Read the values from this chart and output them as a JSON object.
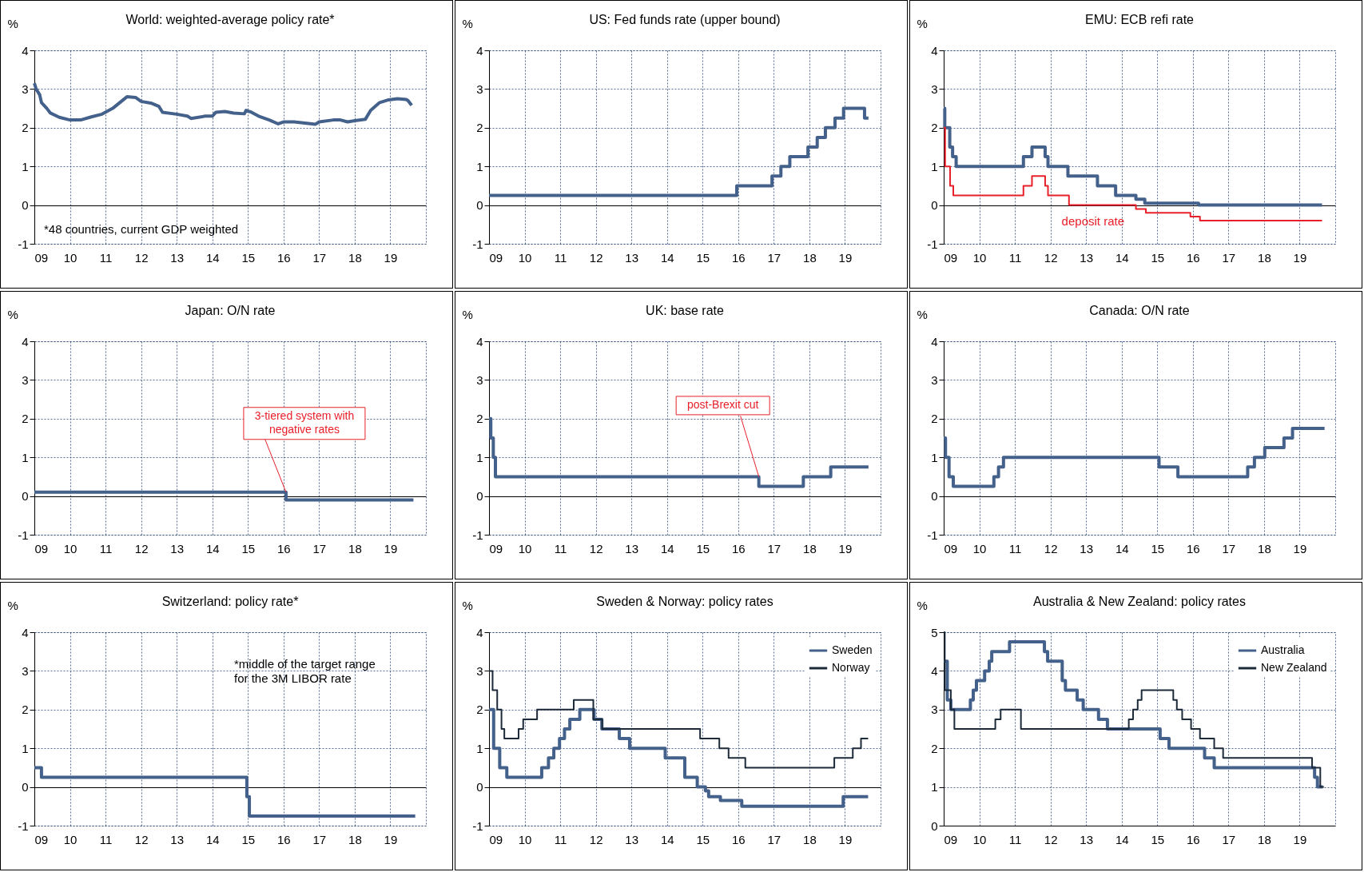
{
  "chart_data": [
    {
      "type": "line",
      "title": "World: weighted-average policy rate*",
      "ylabel": "%",
      "xlim": [
        2009,
        2020
      ],
      "xticks": [
        {
          "value": 2009,
          "label": "09"
        },
        {
          "value": 2010,
          "label": "10"
        },
        {
          "value": 2011,
          "label": "11"
        },
        {
          "value": 2012,
          "label": "12"
        },
        {
          "value": 2013,
          "label": "13"
        },
        {
          "value": 2014,
          "label": "14"
        },
        {
          "value": 2015,
          "label": "15"
        },
        {
          "value": 2016,
          "label": "16"
        },
        {
          "value": 2017,
          "label": "17"
        },
        {
          "value": 2018,
          "label": "18"
        },
        {
          "value": 2019,
          "label": "19"
        }
      ],
      "ylim": [
        -1,
        4
      ],
      "yticks": [
        -1,
        0,
        1,
        2,
        3,
        4
      ],
      "grid": true,
      "annotations": [
        "*48 countries, current GDP weighted"
      ],
      "series": [
        {
          "color": "#44618b",
          "x": [
            2009.0,
            2009.05,
            2009.15,
            2009.2,
            2009.35,
            2009.45,
            2009.7,
            2010.0,
            2010.3,
            2010.6,
            2010.9,
            2011.2,
            2011.4,
            2011.6,
            2011.85,
            2012.0,
            2012.3,
            2012.5,
            2012.6,
            2013.0,
            2013.3,
            2013.4,
            2013.8,
            2014.0,
            2014.1,
            2014.35,
            2014.6,
            2014.9,
            2014.95,
            2015.1,
            2015.3,
            2015.6,
            2015.85,
            2016.0,
            2016.3,
            2016.6,
            2016.9,
            2017.0,
            2017.4,
            2017.6,
            2017.8,
            2018.0,
            2018.3,
            2018.45,
            2018.7,
            2018.95,
            2019.2,
            2019.45,
            2019.5,
            2019.6
          ],
          "values": [
            3.15,
            3.0,
            2.85,
            2.65,
            2.5,
            2.38,
            2.27,
            2.2,
            2.2,
            2.28,
            2.35,
            2.5,
            2.65,
            2.8,
            2.78,
            2.68,
            2.63,
            2.55,
            2.4,
            2.35,
            2.3,
            2.24,
            2.3,
            2.3,
            2.4,
            2.42,
            2.38,
            2.36,
            2.45,
            2.4,
            2.3,
            2.2,
            2.1,
            2.15,
            2.15,
            2.12,
            2.09,
            2.15,
            2.2,
            2.2,
            2.15,
            2.18,
            2.22,
            2.45,
            2.65,
            2.72,
            2.75,
            2.73,
            2.7,
            2.58
          ]
        }
      ]
    },
    {
      "type": "step",
      "title": "US: Fed funds rate (upper bound)",
      "ylabel": "%",
      "xlim": [
        2009,
        2020
      ],
      "xticks": [
        {
          "value": 2009,
          "label": "09"
        },
        {
          "value": 2010,
          "label": "10"
        },
        {
          "value": 2011,
          "label": "11"
        },
        {
          "value": 2012,
          "label": "12"
        },
        {
          "value": 2013,
          "label": "13"
        },
        {
          "value": 2014,
          "label": "14"
        },
        {
          "value": 2015,
          "label": "15"
        },
        {
          "value": 2016,
          "label": "16"
        },
        {
          "value": 2017,
          "label": "17"
        },
        {
          "value": 2018,
          "label": "18"
        },
        {
          "value": 2019,
          "label": "19"
        }
      ],
      "ylim": [
        -1,
        4
      ],
      "yticks": [
        -1,
        0,
        1,
        2,
        3,
        4
      ],
      "grid": true,
      "series": [
        {
          "color": "#44618b",
          "x": [
            2009.0,
            2015.96,
            2016.95,
            2017.2,
            2017.45,
            2017.96,
            2018.22,
            2018.45,
            2018.72,
            2018.96,
            2019.55,
            2019.66
          ],
          "values": [
            0.25,
            0.5,
            0.75,
            1.0,
            1.25,
            1.5,
            1.75,
            2.0,
            2.25,
            2.5,
            2.25,
            2.25
          ]
        }
      ]
    },
    {
      "type": "step",
      "title": "EMU: ECB refi rate",
      "ylabel": "%",
      "xlim": [
        2009,
        2020
      ],
      "xticks": [
        {
          "value": 2009,
          "label": "09"
        },
        {
          "value": 2010,
          "label": "10"
        },
        {
          "value": 2011,
          "label": "11"
        },
        {
          "value": 2012,
          "label": "12"
        },
        {
          "value": 2013,
          "label": "13"
        },
        {
          "value": 2014,
          "label": "14"
        },
        {
          "value": 2015,
          "label": "15"
        },
        {
          "value": 2016,
          "label": "16"
        },
        {
          "value": 2017,
          "label": "17"
        },
        {
          "value": 2018,
          "label": "18"
        },
        {
          "value": 2019,
          "label": "19"
        }
      ],
      "ylim": [
        -1,
        4
      ],
      "yticks": [
        -1,
        0,
        1,
        2,
        3,
        4
      ],
      "grid": true,
      "series": [
        {
          "color": "#44618b",
          "x": [
            2009.0,
            2009.03,
            2009.17,
            2009.25,
            2009.35,
            2011.24,
            2011.48,
            2011.85,
            2011.93,
            2012.49,
            2013.32,
            2013.83,
            2014.4,
            2014.65,
            2016.16,
            2019.63
          ],
          "values": [
            2.5,
            2.0,
            1.5,
            1.25,
            1.0,
            1.25,
            1.5,
            1.25,
            1.0,
            0.75,
            0.5,
            0.25,
            0.15,
            0.05,
            0.0,
            0.0
          ]
        },
        {
          "name": "deposit rate",
          "color": "#e8202a",
          "x": [
            2009.0,
            2009.04,
            2009.18,
            2009.27,
            2011.24,
            2011.48,
            2011.85,
            2011.93,
            2012.52,
            2014.4,
            2014.68,
            2015.93,
            2016.2,
            2019.63
          ],
          "values": [
            2.0,
            1.0,
            0.5,
            0.25,
            0.5,
            0.75,
            0.5,
            0.25,
            0.0,
            -0.1,
            -0.2,
            -0.3,
            -0.4,
            -0.4
          ]
        }
      ]
    },
    {
      "type": "step",
      "title": "Japan: O/N rate",
      "ylabel": "%",
      "xlim": [
        2009,
        2020
      ],
      "xticks": [
        {
          "value": 2009,
          "label": "09"
        },
        {
          "value": 2010,
          "label": "10"
        },
        {
          "value": 2011,
          "label": "11"
        },
        {
          "value": 2012,
          "label": "12"
        },
        {
          "value": 2013,
          "label": "13"
        },
        {
          "value": 2014,
          "label": "14"
        },
        {
          "value": 2015,
          "label": "15"
        },
        {
          "value": 2016,
          "label": "16"
        },
        {
          "value": 2017,
          "label": "17"
        },
        {
          "value": 2018,
          "label": "18"
        },
        {
          "value": 2019,
          "label": "19"
        }
      ],
      "ylim": [
        -1,
        4
      ],
      "yticks": [
        -1,
        0,
        1,
        2,
        3,
        4
      ],
      "grid": true,
      "annotations": [
        {
          "text": "3-tiered system with\nnegative rates",
          "x": 2016.07,
          "y": 0.1
        }
      ],
      "series": [
        {
          "color": "#44618b",
          "x": [
            2009.0,
            2016.07,
            2019.65
          ],
          "values": [
            0.1,
            -0.1,
            -0.1
          ]
        }
      ]
    },
    {
      "type": "step",
      "title": "UK: base rate",
      "ylabel": "%",
      "xlim": [
        2009,
        2020
      ],
      "xticks": [
        {
          "value": 2009,
          "label": "09"
        },
        {
          "value": 2010,
          "label": "10"
        },
        {
          "value": 2011,
          "label": "11"
        },
        {
          "value": 2012,
          "label": "12"
        },
        {
          "value": 2013,
          "label": "13"
        },
        {
          "value": 2014,
          "label": "14"
        },
        {
          "value": 2015,
          "label": "15"
        },
        {
          "value": 2016,
          "label": "16"
        },
        {
          "value": 2017,
          "label": "17"
        },
        {
          "value": 2018,
          "label": "18"
        },
        {
          "value": 2019,
          "label": "19"
        }
      ],
      "ylim": [
        -1,
        4
      ],
      "yticks": [
        -1,
        0,
        1,
        2,
        3,
        4
      ],
      "grid": true,
      "annotations": [
        {
          "text": "post-Brexit cut",
          "x": 2016.58,
          "y": 0.5
        }
      ],
      "series": [
        {
          "color": "#44618b",
          "x": [
            2009.0,
            2009.05,
            2009.12,
            2009.18,
            2016.58,
            2017.83,
            2018.6,
            2019.66
          ],
          "values": [
            2.0,
            1.5,
            1.0,
            0.5,
            0.25,
            0.5,
            0.75,
            0.75
          ]
        }
      ]
    },
    {
      "type": "step",
      "title": "Canada: O/N rate",
      "ylabel": "%",
      "xlim": [
        2009,
        2020
      ],
      "xticks": [
        {
          "value": 2009,
          "label": "09"
        },
        {
          "value": 2010,
          "label": "10"
        },
        {
          "value": 2011,
          "label": "11"
        },
        {
          "value": 2012,
          "label": "12"
        },
        {
          "value": 2013,
          "label": "13"
        },
        {
          "value": 2014,
          "label": "14"
        },
        {
          "value": 2015,
          "label": "15"
        },
        {
          "value": 2016,
          "label": "16"
        },
        {
          "value": 2017,
          "label": "17"
        },
        {
          "value": 2018,
          "label": "18"
        },
        {
          "value": 2019,
          "label": "19"
        }
      ],
      "ylim": [
        -1,
        4
      ],
      "yticks": [
        -1,
        0,
        1,
        2,
        3,
        4
      ],
      "grid": true,
      "series": [
        {
          "color": "#44618b",
          "x": [
            2009.0,
            2009.05,
            2009.15,
            2009.27,
            2010.41,
            2010.54,
            2010.68,
            2015.05,
            2015.58,
            2017.54,
            2017.73,
            2018.02,
            2018.56,
            2018.8,
            2019.7
          ],
          "values": [
            1.5,
            1.0,
            0.5,
            0.25,
            0.5,
            0.75,
            1.0,
            0.75,
            0.5,
            0.75,
            1.0,
            1.25,
            1.5,
            1.75,
            1.75
          ]
        }
      ]
    },
    {
      "type": "step",
      "title": "Switzerland: policy rate*",
      "ylabel": "%",
      "xlim": [
        2009,
        2020
      ],
      "xticks": [
        {
          "value": 2009,
          "label": "09"
        },
        {
          "value": 2010,
          "label": "10"
        },
        {
          "value": 2011,
          "label": "11"
        },
        {
          "value": 2012,
          "label": "12"
        },
        {
          "value": 2013,
          "label": "13"
        },
        {
          "value": 2014,
          "label": "14"
        },
        {
          "value": 2015,
          "label": "15"
        },
        {
          "value": 2016,
          "label": "16"
        },
        {
          "value": 2017,
          "label": "17"
        },
        {
          "value": 2018,
          "label": "18"
        },
        {
          "value": 2019,
          "label": "19"
        }
      ],
      "ylim": [
        -1,
        4
      ],
      "yticks": [
        -1,
        0,
        1,
        2,
        3,
        4
      ],
      "grid": true,
      "annotations": [
        "*middle of the target range\nfor the 3M LIBOR rate"
      ],
      "series": [
        {
          "color": "#44618b",
          "x": [
            2009.0,
            2009.2,
            2014.97,
            2015.04,
            2019.7
          ],
          "values": [
            0.5,
            0.25,
            -0.25,
            -0.75,
            -0.75
          ]
        }
      ]
    },
    {
      "type": "step",
      "title": "Sweden & Norway: policy rates",
      "ylabel": "%",
      "xlim": [
        2009,
        2020
      ],
      "xticks": [
        {
          "value": 2009,
          "label": "09"
        },
        {
          "value": 2010,
          "label": "10"
        },
        {
          "value": 2011,
          "label": "11"
        },
        {
          "value": 2012,
          "label": "12"
        },
        {
          "value": 2013,
          "label": "13"
        },
        {
          "value": 2014,
          "label": "14"
        },
        {
          "value": 2015,
          "label": "15"
        },
        {
          "value": 2016,
          "label": "16"
        },
        {
          "value": 2017,
          "label": "17"
        },
        {
          "value": 2018,
          "label": "18"
        },
        {
          "value": 2019,
          "label": "19"
        }
      ],
      "ylim": [
        -1,
        4
      ],
      "yticks": [
        -1,
        0,
        1,
        2,
        3,
        4
      ],
      "grid": true,
      "legend": "top right",
      "series": [
        {
          "name": "Sweden",
          "color": "#44618b",
          "x": [
            2009.0,
            2009.13,
            2009.3,
            2009.5,
            2010.48,
            2010.67,
            2010.82,
            2010.98,
            2011.12,
            2011.27,
            2011.55,
            2011.95,
            2012.17,
            2012.66,
            2012.95,
            2013.95,
            2014.5,
            2014.85,
            2015.08,
            2015.17,
            2015.5,
            2016.1,
            2018.95,
            2019.65
          ],
          "values": [
            2.0,
            1.0,
            0.5,
            0.25,
            0.5,
            0.75,
            1.0,
            1.25,
            1.5,
            1.75,
            2.0,
            1.75,
            1.5,
            1.25,
            1.0,
            0.75,
            0.25,
            0.0,
            -0.1,
            -0.25,
            -0.35,
            -0.5,
            -0.25,
            -0.25
          ]
        },
        {
          "name": "Norway",
          "color": "#1c2a3a",
          "x": [
            2009.0,
            2009.1,
            2009.23,
            2009.35,
            2009.43,
            2009.83,
            2009.96,
            2010.35,
            2011.38,
            2011.93,
            2012.18,
            2014.93,
            2015.47,
            2015.73,
            2016.2,
            2018.7,
            2019.22,
            2019.45,
            2019.65
          ],
          "values": [
            3.0,
            2.5,
            2.0,
            1.5,
            1.25,
            1.5,
            1.75,
            2.0,
            2.25,
            1.75,
            1.5,
            1.25,
            1.0,
            0.75,
            0.5,
            0.75,
            1.0,
            1.25,
            1.25
          ]
        }
      ]
    },
    {
      "type": "step",
      "title": "Australia & New Zealand: policy rates",
      "ylabel": "%",
      "xlim": [
        2009,
        2020
      ],
      "xticks": [
        {
          "value": 2009,
          "label": "09"
        },
        {
          "value": 2010,
          "label": "10"
        },
        {
          "value": 2011,
          "label": "11"
        },
        {
          "value": 2012,
          "label": "12"
        },
        {
          "value": 2013,
          "label": "13"
        },
        {
          "value": 2014,
          "label": "14"
        },
        {
          "value": 2015,
          "label": "15"
        },
        {
          "value": 2016,
          "label": "16"
        },
        {
          "value": 2017,
          "label": "17"
        },
        {
          "value": 2018,
          "label": "18"
        },
        {
          "value": 2019,
          "label": "19"
        }
      ],
      "ylim": [
        0,
        5
      ],
      "yticks": [
        0,
        1,
        2,
        3,
        4,
        5
      ],
      "grid": true,
      "legend": "top right",
      "series": [
        {
          "name": "Australia",
          "color": "#44618b",
          "x": [
            2009.0,
            2009.1,
            2009.2,
            2009.75,
            2009.83,
            2009.92,
            2010.15,
            2010.28,
            2010.35,
            2010.85,
            2011.83,
            2011.92,
            2012.33,
            2012.42,
            2012.75,
            2012.92,
            2013.35,
            2013.6,
            2015.08,
            2015.33,
            2016.33,
            2016.6,
            2019.42,
            2019.5,
            2019.65
          ],
          "values": [
            4.25,
            3.25,
            3.0,
            3.25,
            3.5,
            3.75,
            4.0,
            4.25,
            4.5,
            4.75,
            4.5,
            4.25,
            3.75,
            3.5,
            3.25,
            3.0,
            2.75,
            2.5,
            2.25,
            2.0,
            1.75,
            1.5,
            1.25,
            1.0,
            1.0
          ]
        },
        {
          "name": "New Zealand",
          "color": "#1c2a3a",
          "x": [
            2009.0,
            2009.03,
            2009.2,
            2009.3,
            2010.45,
            2010.6,
            2011.17,
            2014.2,
            2014.32,
            2014.45,
            2014.56,
            2015.45,
            2015.55,
            2015.7,
            2015.95,
            2016.2,
            2016.6,
            2016.85,
            2019.35,
            2019.58,
            2019.68
          ],
          "values": [
            5.0,
            3.5,
            3.0,
            2.5,
            2.75,
            3.0,
            2.5,
            2.75,
            3.0,
            3.25,
            3.5,
            3.25,
            3.0,
            2.75,
            2.5,
            2.25,
            2.0,
            1.75,
            1.5,
            1.0,
            1.0
          ]
        }
      ]
    }
  ]
}
